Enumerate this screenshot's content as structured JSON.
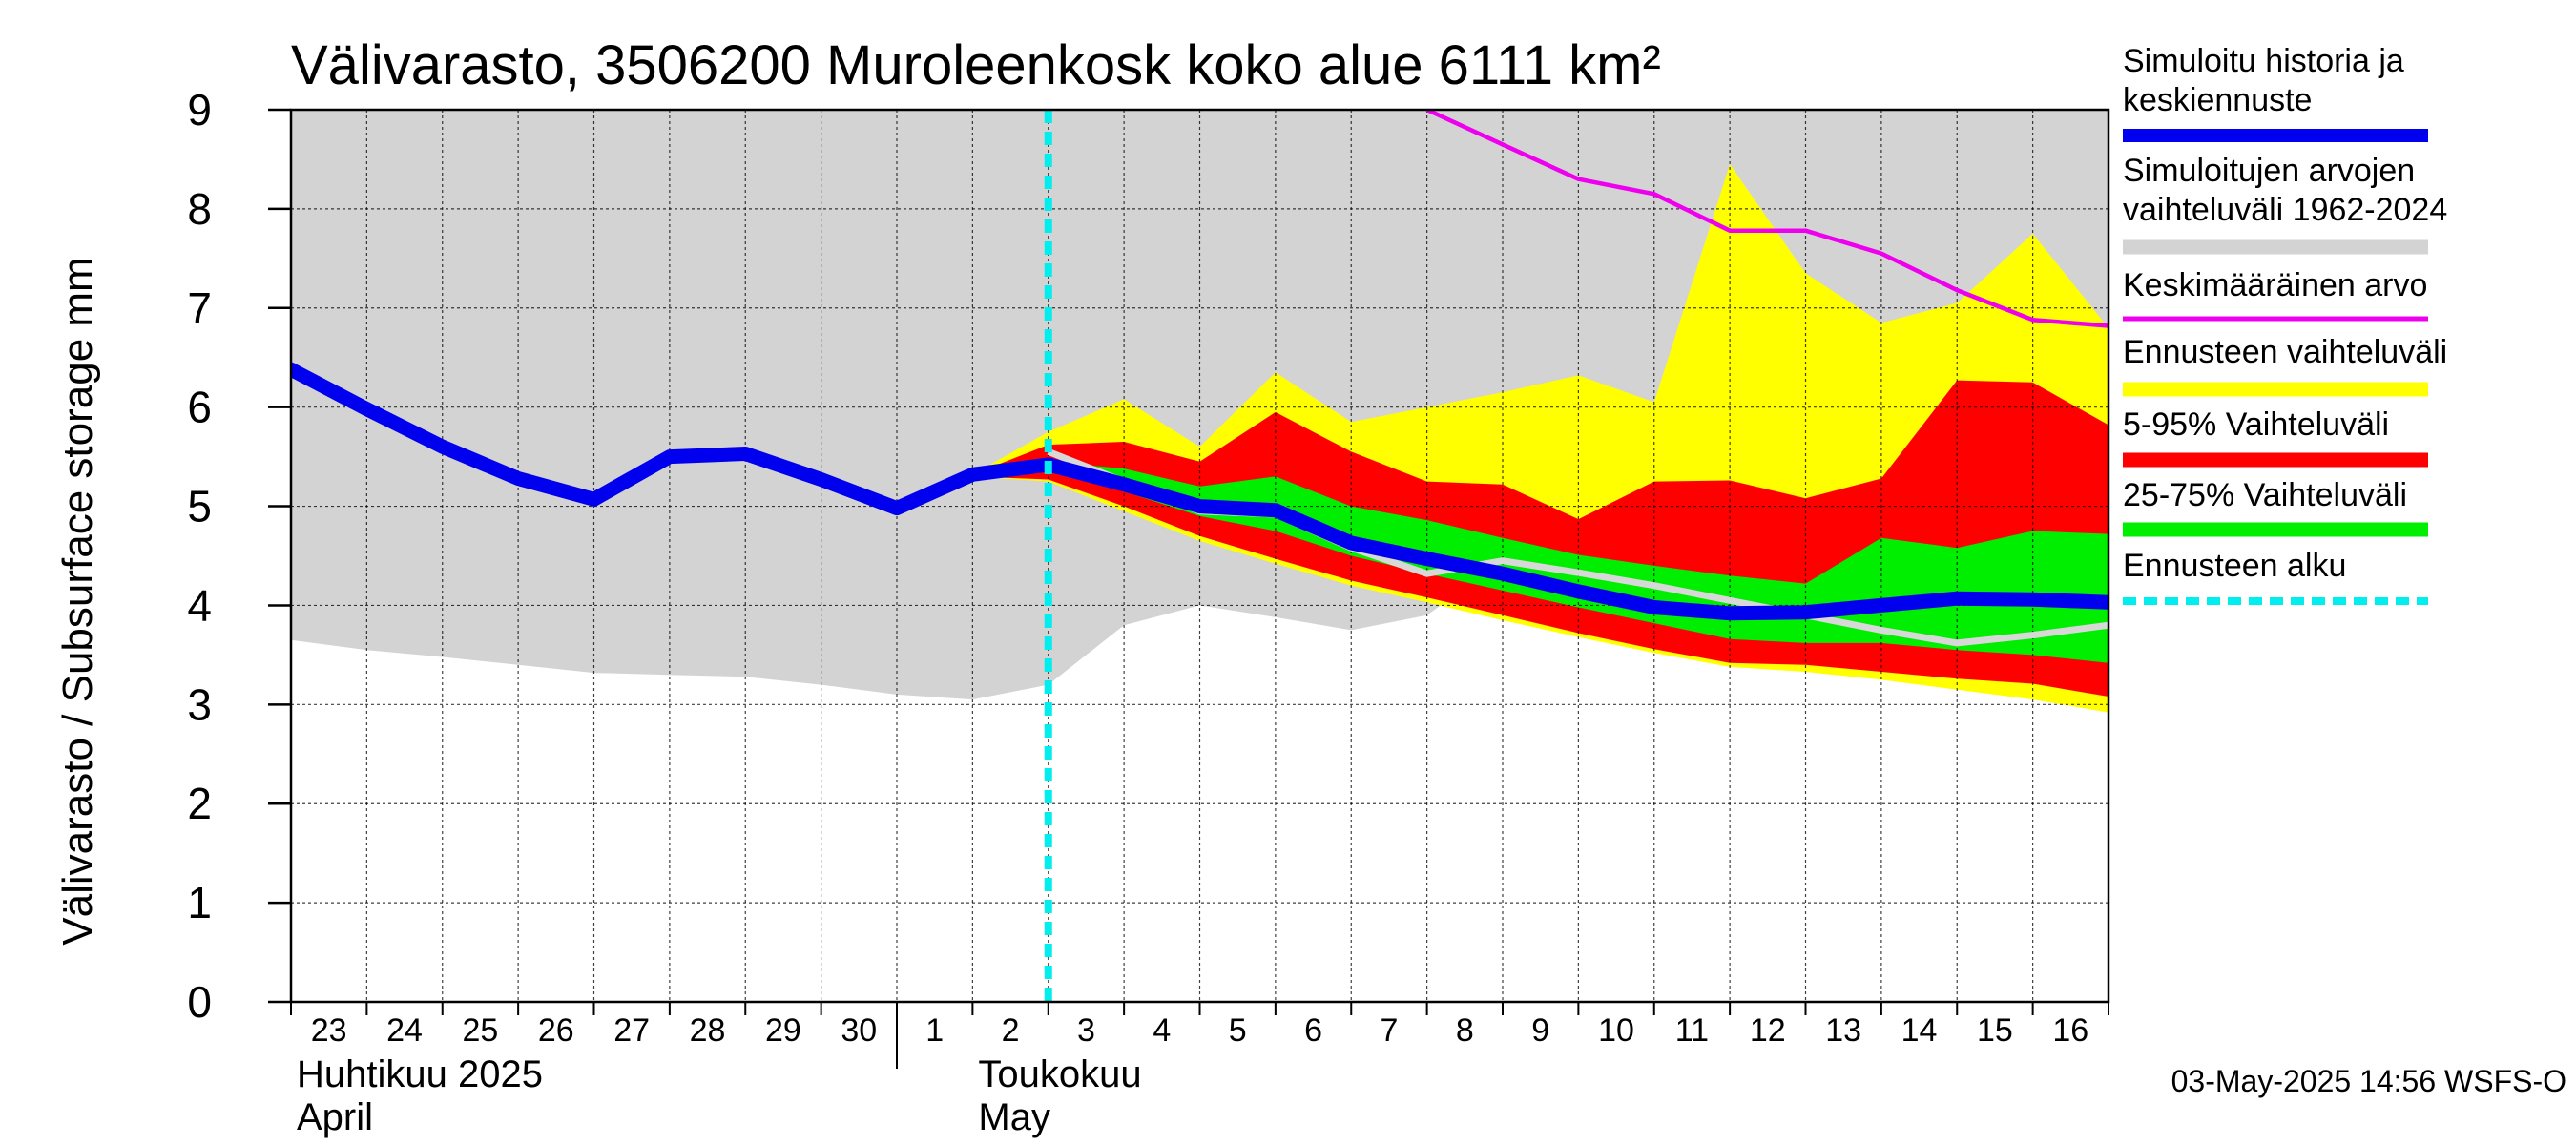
{
  "chart_data": {
    "type": "area",
    "title": "Välivarasto, 3506200 Muroleenkosk koko alue 6111 km²",
    "ylabel": "Välivarasto / Subsurface storage  mm",
    "ylim": [
      0,
      9
    ],
    "yticks": [
      "0",
      "1",
      "2",
      "3",
      "4",
      "5",
      "6",
      "7",
      "8",
      "9"
    ],
    "xlim": [
      "2025-04-23",
      "2025-05-17"
    ],
    "grid": true,
    "x": [
      "2025-04-23",
      "2025-04-24",
      "2025-04-25",
      "2025-04-26",
      "2025-04-27",
      "2025-04-28",
      "2025-04-29",
      "2025-04-30",
      "2025-05-01",
      "2025-05-02",
      "2025-05-03",
      "2025-05-04",
      "2025-05-05",
      "2025-05-06",
      "2025-05-07",
      "2025-05-08",
      "2025-05-09",
      "2025-05-10",
      "2025-05-11",
      "2025-05-12",
      "2025-05-13",
      "2025-05-14",
      "2025-05-15",
      "2025-05-16",
      "2025-05-17"
    ],
    "x_tick_labels": [
      "23",
      "24",
      "25",
      "26",
      "27",
      "28",
      "29",
      "30",
      "1",
      "2",
      "3",
      "4",
      "5",
      "6",
      "7",
      "8",
      "9",
      "10",
      "11",
      "12",
      "13",
      "14",
      "15",
      "16"
    ],
    "month_labels": [
      {
        "line1": "Huhtikuu  2025",
        "line2": "April"
      },
      {
        "line1": "Toukokuu",
        "line2": "May"
      }
    ],
    "forecast_start": "2025-05-03",
    "historical_range": {
      "name": "Simuloitujen arvojen vaihteluväli 1962-2024",
      "lower": [
        3.65,
        3.55,
        3.48,
        3.4,
        3.32,
        3.3,
        3.28,
        3.2,
        3.1,
        3.05,
        3.2,
        3.8,
        4.0,
        3.88,
        3.75,
        3.9,
        4.45,
        4.33,
        4.2,
        4.05,
        3.9,
        3.75,
        3.68,
        3.72,
        3.8
      ],
      "upper": [
        9,
        9,
        9,
        9,
        9,
        9,
        9,
        9,
        9,
        9,
        9,
        9,
        9,
        9,
        9,
        9,
        9,
        9,
        9,
        9,
        9,
        9,
        9,
        9,
        9
      ]
    },
    "forecast_x": [
      "2025-05-02",
      "2025-05-03",
      "2025-05-04",
      "2025-05-05",
      "2025-05-06",
      "2025-05-07",
      "2025-05-08",
      "2025-05-09",
      "2025-05-10",
      "2025-05-11",
      "2025-05-12",
      "2025-05-13",
      "2025-05-14",
      "2025-05-15",
      "2025-05-16",
      "2025-05-17"
    ],
    "forecast_range": {
      "name": "Ennusteen vaihteluväli",
      "lower": [
        5.3,
        5.25,
        4.95,
        4.65,
        4.42,
        4.2,
        4.03,
        3.85,
        3.68,
        3.52,
        3.38,
        3.33,
        3.25,
        3.15,
        3.05,
        2.92
      ],
      "upper": [
        5.32,
        5.75,
        6.08,
        5.6,
        6.35,
        5.85,
        6.0,
        6.15,
        6.32,
        6.05,
        8.45,
        7.35,
        6.85,
        7.05,
        7.75,
        6.8
      ]
    },
    "band_5_95": {
      "name": "5-95% Vaihteluväli",
      "lower": [
        5.3,
        5.27,
        5.0,
        4.7,
        4.47,
        4.25,
        4.08,
        3.9,
        3.72,
        3.56,
        3.42,
        3.4,
        3.33,
        3.26,
        3.21,
        3.08
      ],
      "upper": [
        5.32,
        5.62,
        5.65,
        5.45,
        5.95,
        5.55,
        5.25,
        5.22,
        4.87,
        5.25,
        5.26,
        5.08,
        5.28,
        6.27,
        6.25,
        5.82
      ]
    },
    "band_25_75": {
      "name": "25-75% Vaihteluväli",
      "lower": [
        5.3,
        5.35,
        5.15,
        4.9,
        4.75,
        4.5,
        4.32,
        4.15,
        3.98,
        3.82,
        3.66,
        3.62,
        3.62,
        3.55,
        3.5,
        3.42
      ],
      "upper": [
        5.32,
        5.45,
        5.38,
        5.2,
        5.3,
        5.0,
        4.86,
        4.68,
        4.51,
        4.4,
        4.3,
        4.22,
        4.68,
        4.58,
        4.75,
        4.72
      ]
    },
    "series": [
      {
        "name": "Simuloitu historia ja keskiennuste",
        "color": "#0000ee",
        "x": [
          "2025-04-23",
          "2025-04-24",
          "2025-04-25",
          "2025-04-26",
          "2025-04-27",
          "2025-04-28",
          "2025-04-29",
          "2025-04-30",
          "2025-05-01",
          "2025-05-02",
          "2025-05-03",
          "2025-05-04",
          "2025-05-05",
          "2025-05-06",
          "2025-05-07",
          "2025-05-08",
          "2025-05-09",
          "2025-05-10",
          "2025-05-11",
          "2025-05-12",
          "2025-05-13",
          "2025-05-14",
          "2025-05-15",
          "2025-05-16",
          "2025-05-17"
        ],
        "values": [
          6.38,
          5.98,
          5.6,
          5.28,
          5.07,
          5.5,
          5.53,
          5.27,
          4.98,
          5.32,
          5.42,
          5.22,
          5.0,
          4.96,
          4.63,
          4.47,
          4.32,
          4.14,
          3.98,
          3.92,
          3.93,
          4.0,
          4.07,
          4.06,
          4.03
        ]
      },
      {
        "name": "Keskimääräinen arvo",
        "color": "#ee00ee",
        "x": [
          "2025-05-08",
          "2025-05-09",
          "2025-05-10",
          "2025-05-11",
          "2025-05-12",
          "2025-05-13",
          "2025-05-14",
          "2025-05-15",
          "2025-05-16",
          "2025-05-17"
        ],
        "values": [
          9.0,
          8.65,
          8.3,
          8.15,
          7.78,
          7.78,
          7.55,
          7.18,
          6.88,
          6.82
        ]
      },
      {
        "name": "",
        "color": "#d8d8d8",
        "x": [
          "2025-05-03",
          "2025-05-04",
          "2025-05-05",
          "2025-05-06",
          "2025-05-07",
          "2025-05-08",
          "2025-05-09",
          "2025-05-10",
          "2025-05-11",
          "2025-05-12",
          "2025-05-13",
          "2025-05-14",
          "2025-05-15",
          "2025-05-16",
          "2025-05-17"
        ],
        "values": [
          5.55,
          5.25,
          4.95,
          4.92,
          4.58,
          4.32,
          4.45,
          4.33,
          4.2,
          4.05,
          3.9,
          3.75,
          3.62,
          3.7,
          3.8
        ]
      }
    ]
  },
  "legend": [
    {
      "lines": [
        "Simuloitu historia ja",
        "keskiennuste"
      ],
      "color": "#0000ee",
      "style": "thick"
    },
    {
      "lines": [
        "Simuloitujen arvojen",
        "vaihteluväli 1962-2024"
      ],
      "color": "#d3d3d3",
      "style": "band"
    },
    {
      "lines": [
        "Keskimääräinen arvo"
      ],
      "color": "#ee00ee",
      "style": "thin"
    },
    {
      "lines": [
        "Ennusteen vaihteluväli"
      ],
      "color": "#ffff00",
      "style": "band"
    },
    {
      "lines": [
        "5-95% Vaihteluväli"
      ],
      "color": "#ff0000",
      "style": "band"
    },
    {
      "lines": [
        "25-75% Vaihteluväli"
      ],
      "color": "#00ee00",
      "style": "band"
    },
    {
      "lines": [
        "Ennusteen alku"
      ],
      "color": "#00eeee",
      "style": "dashed"
    }
  ],
  "footer": "03-May-2025 14:56 WSFS-O"
}
